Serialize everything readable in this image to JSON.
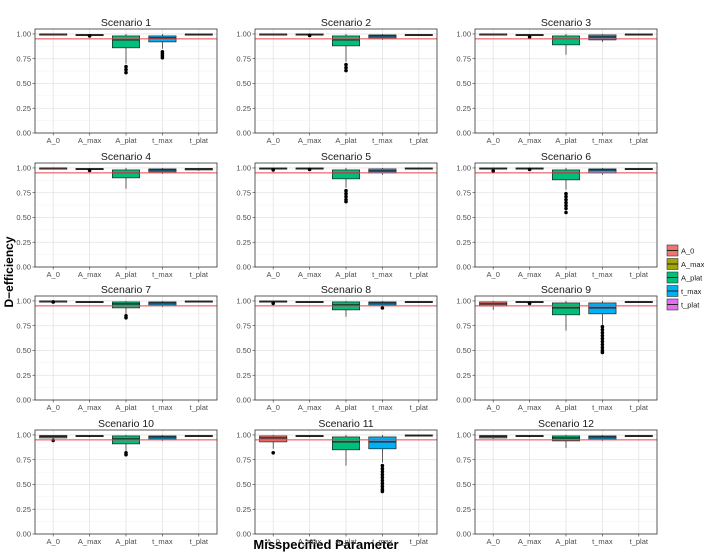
{
  "chart_data": {
    "type": "boxplot",
    "xlabel": "Misspecified Parameter",
    "ylabel": "D−efficiency",
    "ylim": [
      0,
      1.05
    ],
    "yticks": [
      "0.00",
      "0.25",
      "0.50",
      "0.75",
      "1.00"
    ],
    "categories": [
      "A_0",
      "A_max",
      "A_plat",
      "t_max",
      "t_plat"
    ],
    "reference_line": 0.95,
    "reference_line_color": "#e8454b",
    "grid": true,
    "legend_position": "right",
    "legend": [
      {
        "label": "A_0",
        "color": "#f0766d"
      },
      {
        "label": "A_max",
        "color": "#a3a500"
      },
      {
        "label": "A_plat",
        "color": "#00bf7d"
      },
      {
        "label": "t_max",
        "color": "#00b0f6"
      },
      {
        "label": "t_plat",
        "color": "#e76bf3"
      }
    ],
    "panels": [
      {
        "title": "Scenario 1",
        "boxes": [
          {
            "q1": 0.995,
            "med": 0.998,
            "q3": 1.0,
            "lo": 0.99,
            "hi": 1.0,
            "out": []
          },
          {
            "q1": 0.985,
            "med": 0.99,
            "q3": 0.995,
            "lo": 0.98,
            "hi": 1.0,
            "out": [
              0.98
            ]
          },
          {
            "q1": 0.86,
            "med": 0.94,
            "q3": 0.98,
            "lo": 0.7,
            "hi": 1.0,
            "out": [
              0.67,
              0.64,
              0.61
            ]
          },
          {
            "q1": 0.92,
            "med": 0.96,
            "q3": 0.98,
            "lo": 0.85,
            "hi": 1.0,
            "out": [
              0.82,
              0.8,
              0.78,
              0.76
            ]
          },
          {
            "q1": 0.99,
            "med": 0.995,
            "q3": 1.0,
            "lo": 0.985,
            "hi": 1.0,
            "out": []
          }
        ]
      },
      {
        "title": "Scenario 2",
        "boxes": [
          {
            "q1": 0.995,
            "med": 0.998,
            "q3": 1.0,
            "lo": 0.99,
            "hi": 1.0,
            "out": []
          },
          {
            "q1": 0.99,
            "med": 0.995,
            "q3": 1.0,
            "lo": 0.985,
            "hi": 1.0,
            "out": [
              0.985
            ]
          },
          {
            "q1": 0.88,
            "med": 0.94,
            "q3": 0.98,
            "lo": 0.72,
            "hi": 1.0,
            "out": [
              0.69,
              0.66,
              0.63
            ]
          },
          {
            "q1": 0.96,
            "med": 0.98,
            "q3": 0.99,
            "lo": 0.94,
            "hi": 1.0,
            "out": []
          },
          {
            "q1": 0.985,
            "med": 0.99,
            "q3": 0.995,
            "lo": 0.98,
            "hi": 1.0,
            "out": []
          }
        ]
      },
      {
        "title": "Scenario 3",
        "boxes": [
          {
            "q1": 0.995,
            "med": 0.998,
            "q3": 1.0,
            "lo": 0.99,
            "hi": 1.0,
            "out": []
          },
          {
            "q1": 0.985,
            "med": 0.99,
            "q3": 0.995,
            "lo": 0.97,
            "hi": 1.0,
            "out": [
              0.97
            ]
          },
          {
            "q1": 0.89,
            "med": 0.95,
            "q3": 0.98,
            "lo": 0.79,
            "hi": 1.0,
            "out": []
          },
          {
            "q1": 0.94,
            "med": 0.97,
            "q3": 0.99,
            "lo": 0.92,
            "hi": 1.0,
            "out": []
          },
          {
            "q1": 0.99,
            "med": 0.995,
            "q3": 1.0,
            "lo": 0.985,
            "hi": 1.0,
            "out": []
          }
        ]
      },
      {
        "title": "Scenario 4",
        "boxes": [
          {
            "q1": 0.995,
            "med": 0.998,
            "q3": 1.0,
            "lo": 0.99,
            "hi": 1.0,
            "out": []
          },
          {
            "q1": 0.985,
            "med": 0.99,
            "q3": 0.995,
            "lo": 0.975,
            "hi": 1.0,
            "out": [
              0.975
            ]
          },
          {
            "q1": 0.9,
            "med": 0.95,
            "q3": 0.98,
            "lo": 0.79,
            "hi": 1.0,
            "out": []
          },
          {
            "q1": 0.96,
            "med": 0.98,
            "q3": 0.99,
            "lo": 0.94,
            "hi": 1.0,
            "out": []
          },
          {
            "q1": 0.98,
            "med": 0.99,
            "q3": 0.995,
            "lo": 0.97,
            "hi": 1.0,
            "out": []
          }
        ]
      },
      {
        "title": "Scenario 5",
        "boxes": [
          {
            "q1": 0.99,
            "med": 0.995,
            "q3": 1.0,
            "lo": 0.98,
            "hi": 1.0,
            "out": [
              0.98
            ]
          },
          {
            "q1": 0.99,
            "med": 0.995,
            "q3": 1.0,
            "lo": 0.985,
            "hi": 1.0,
            "out": [
              0.985
            ]
          },
          {
            "q1": 0.89,
            "med": 0.95,
            "q3": 0.98,
            "lo": 0.8,
            "hi": 1.0,
            "out": [
              0.77,
              0.74,
              0.71,
              0.68,
              0.66
            ]
          },
          {
            "q1": 0.95,
            "med": 0.97,
            "q3": 0.99,
            "lo": 0.93,
            "hi": 1.0,
            "out": []
          },
          {
            "q1": 0.99,
            "med": 0.995,
            "q3": 1.0,
            "lo": 0.985,
            "hi": 1.0,
            "out": []
          }
        ]
      },
      {
        "title": "Scenario 6",
        "boxes": [
          {
            "q1": 0.99,
            "med": 0.995,
            "q3": 1.0,
            "lo": 0.98,
            "hi": 1.0,
            "out": [
              0.97
            ]
          },
          {
            "q1": 0.99,
            "med": 0.995,
            "q3": 1.0,
            "lo": 0.985,
            "hi": 1.0,
            "out": [
              0.985
            ]
          },
          {
            "q1": 0.88,
            "med": 0.95,
            "q3": 0.98,
            "lo": 0.78,
            "hi": 1.0,
            "out": [
              0.74,
              0.71,
              0.68,
              0.65,
              0.62,
              0.59,
              0.55
            ]
          },
          {
            "q1": 0.95,
            "med": 0.98,
            "q3": 0.99,
            "lo": 0.93,
            "hi": 1.0,
            "out": []
          },
          {
            "q1": 0.985,
            "med": 0.99,
            "q3": 0.995,
            "lo": 0.98,
            "hi": 1.0,
            "out": []
          }
        ]
      },
      {
        "title": "Scenario 7",
        "boxes": [
          {
            "q1": 0.995,
            "med": 0.998,
            "q3": 1.0,
            "lo": 0.99,
            "hi": 1.0,
            "out": [
              0.99
            ]
          },
          {
            "q1": 0.985,
            "med": 0.99,
            "q3": 0.995,
            "lo": 0.98,
            "hi": 1.0,
            "out": []
          },
          {
            "q1": 0.93,
            "med": 0.97,
            "q3": 0.99,
            "lo": 0.87,
            "hi": 1.0,
            "out": [
              0.85,
              0.83
            ]
          },
          {
            "q1": 0.96,
            "med": 0.98,
            "q3": 0.99,
            "lo": 0.94,
            "hi": 1.0,
            "out": []
          },
          {
            "q1": 0.99,
            "med": 0.995,
            "q3": 1.0,
            "lo": 0.985,
            "hi": 1.0,
            "out": []
          }
        ]
      },
      {
        "title": "Scenario 8",
        "boxes": [
          {
            "q1": 0.99,
            "med": 0.995,
            "q3": 1.0,
            "lo": 0.98,
            "hi": 1.0,
            "out": [
              0.975
            ]
          },
          {
            "q1": 0.985,
            "med": 0.99,
            "q3": 0.995,
            "lo": 0.98,
            "hi": 1.0,
            "out": []
          },
          {
            "q1": 0.91,
            "med": 0.96,
            "q3": 0.99,
            "lo": 0.84,
            "hi": 1.0,
            "out": []
          },
          {
            "q1": 0.96,
            "med": 0.98,
            "q3": 0.99,
            "lo": 0.94,
            "hi": 1.0,
            "out": [
              0.93
            ]
          },
          {
            "q1": 0.985,
            "med": 0.99,
            "q3": 0.995,
            "lo": 0.98,
            "hi": 1.0,
            "out": []
          }
        ]
      },
      {
        "title": "Scenario 9",
        "boxes": [
          {
            "q1": 0.95,
            "med": 0.97,
            "q3": 0.99,
            "lo": 0.91,
            "hi": 1.0,
            "out": []
          },
          {
            "q1": 0.985,
            "med": 0.99,
            "q3": 0.995,
            "lo": 0.975,
            "hi": 1.0,
            "out": [
              0.975
            ]
          },
          {
            "q1": 0.86,
            "med": 0.93,
            "q3": 0.98,
            "lo": 0.7,
            "hi": 1.0,
            "out": []
          },
          {
            "q1": 0.87,
            "med": 0.93,
            "q3": 0.98,
            "lo": 0.76,
            "hi": 1.0,
            "out": [
              0.74,
              0.71,
              0.68,
              0.65,
              0.62,
              0.59,
              0.56,
              0.53,
              0.5,
              0.48
            ]
          },
          {
            "q1": 0.985,
            "med": 0.99,
            "q3": 0.995,
            "lo": 0.98,
            "hi": 1.0,
            "out": []
          }
        ]
      },
      {
        "title": "Scenario 10",
        "boxes": [
          {
            "q1": 0.97,
            "med": 0.985,
            "q3": 0.995,
            "lo": 0.96,
            "hi": 1.0,
            "out": [
              0.945
            ]
          },
          {
            "q1": 0.985,
            "med": 0.99,
            "q3": 0.995,
            "lo": 0.975,
            "hi": 1.0,
            "out": []
          },
          {
            "q1": 0.91,
            "med": 0.96,
            "q3": 0.99,
            "lo": 0.84,
            "hi": 1.0,
            "out": [
              0.82,
              0.8
            ]
          },
          {
            "q1": 0.96,
            "med": 0.98,
            "q3": 0.99,
            "lo": 0.94,
            "hi": 1.0,
            "out": []
          },
          {
            "q1": 0.985,
            "med": 0.99,
            "q3": 0.995,
            "lo": 0.98,
            "hi": 1.0,
            "out": []
          }
        ]
      },
      {
        "title": "Scenario 11",
        "boxes": [
          {
            "q1": 0.93,
            "med": 0.97,
            "q3": 0.99,
            "lo": 0.86,
            "hi": 1.0,
            "out": [
              0.82
            ]
          },
          {
            "q1": 0.985,
            "med": 0.99,
            "q3": 0.995,
            "lo": 0.975,
            "hi": 1.0,
            "out": []
          },
          {
            "q1": 0.85,
            "med": 0.93,
            "q3": 0.98,
            "lo": 0.69,
            "hi": 1.0,
            "out": []
          },
          {
            "q1": 0.86,
            "med": 0.93,
            "q3": 0.98,
            "lo": 0.72,
            "hi": 1.0,
            "out": [
              0.69,
              0.66,
              0.63,
              0.6,
              0.57,
              0.54,
              0.51,
              0.48,
              0.45,
              0.43
            ]
          },
          {
            "q1": 0.99,
            "med": 0.995,
            "q3": 1.0,
            "lo": 0.985,
            "hi": 1.0,
            "out": []
          }
        ]
      },
      {
        "title": "Scenario 12",
        "boxes": [
          {
            "q1": 0.97,
            "med": 0.985,
            "q3": 0.995,
            "lo": 0.96,
            "hi": 1.0,
            "out": []
          },
          {
            "q1": 0.985,
            "med": 0.99,
            "q3": 0.995,
            "lo": 0.975,
            "hi": 1.0,
            "out": []
          },
          {
            "q1": 0.94,
            "med": 0.97,
            "q3": 0.99,
            "lo": 0.87,
            "hi": 1.0,
            "out": []
          },
          {
            "q1": 0.96,
            "med": 0.98,
            "q3": 0.99,
            "lo": 0.94,
            "hi": 1.0,
            "out": []
          },
          {
            "q1": 0.985,
            "med": 0.99,
            "q3": 0.995,
            "lo": 0.98,
            "hi": 1.0,
            "out": []
          }
        ]
      }
    ]
  }
}
